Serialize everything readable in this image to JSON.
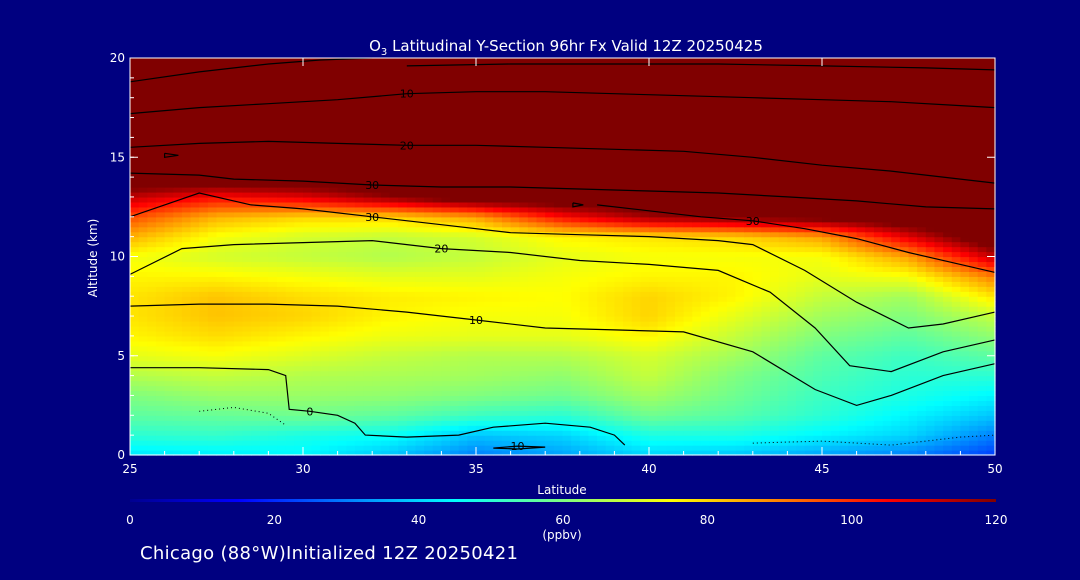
{
  "chart_data": {
    "type": "heatmap",
    "title_prefix": "O",
    "title_sub": "3",
    "title_rest": " Latitudinal Y-Section 96hr  Fx Valid 12Z 20250425",
    "xlabel": "Latitude",
    "ylabel": "Altitude (km)",
    "xlim": [
      25,
      50
    ],
    "ylim": [
      0,
      20
    ],
    "x_ticks": [
      "25",
      "30",
      "35",
      "40",
      "45",
      "50"
    ],
    "y_ticks": [
      "0",
      "5",
      "10",
      "15",
      "20"
    ],
    "colorbar": {
      "range": [
        0,
        120
      ],
      "ticks": [
        "0",
        "20",
        "40",
        "60",
        "80",
        "100",
        "120"
      ],
      "unit": "(ppbv)",
      "colormap": "jet"
    },
    "lat": [
      25,
      27.5,
      30,
      32.5,
      35,
      37.5,
      40,
      42.5,
      45,
      47.5,
      50
    ],
    "alt": [
      0,
      1,
      2,
      3,
      4,
      5,
      6,
      7,
      8,
      9,
      10,
      11,
      12,
      13,
      14,
      15,
      16,
      17,
      18,
      19,
      20
    ],
    "values": [
      [
        42,
        43,
        44,
        38,
        30,
        34,
        40,
        38,
        34,
        30,
        22
      ],
      [
        50,
        51,
        48,
        46,
        38,
        40,
        48,
        48,
        44,
        40,
        30
      ],
      [
        56,
        57,
        58,
        56,
        52,
        50,
        58,
        55,
        50,
        44,
        38
      ],
      [
        60,
        63,
        63,
        62,
        60,
        58,
        64,
        58,
        52,
        48,
        44
      ],
      [
        66,
        68,
        66,
        65,
        64,
        62,
        68,
        60,
        54,
        50,
        50
      ],
      [
        72,
        74,
        71,
        68,
        66,
        66,
        70,
        64,
        56,
        52,
        56
      ],
      [
        76,
        79,
        76,
        73,
        72,
        72,
        76,
        68,
        60,
        56,
        62
      ],
      [
        78,
        82,
        80,
        76,
        74,
        74,
        80,
        72,
        64,
        60,
        68
      ],
      [
        78,
        82,
        79,
        77,
        76,
        75,
        80,
        76,
        68,
        64,
        78
      ],
      [
        76,
        76,
        74,
        72,
        72,
        74,
        76,
        76,
        72,
        74,
        90
      ],
      [
        74,
        70,
        68,
        66,
        68,
        72,
        74,
        74,
        74,
        86,
        112
      ],
      [
        84,
        74,
        70,
        68,
        70,
        76,
        78,
        80,
        86,
        108,
        130
      ],
      [
        96,
        84,
        80,
        80,
        86,
        104,
        116,
        120,
        124,
        130,
        130
      ],
      [
        112,
        104,
        108,
        118,
        128,
        130,
        130,
        130,
        130,
        130,
        130
      ],
      [
        130,
        130,
        130,
        130,
        130,
        130,
        130,
        130,
        130,
        130,
        130
      ],
      [
        130,
        130,
        130,
        130,
        130,
        130,
        130,
        130,
        130,
        130,
        130
      ],
      [
        130,
        130,
        130,
        130,
        130,
        130,
        130,
        130,
        130,
        130,
        130
      ],
      [
        130,
        130,
        130,
        130,
        130,
        130,
        130,
        130,
        130,
        130,
        130
      ],
      [
        130,
        130,
        130,
        130,
        130,
        130,
        130,
        130,
        130,
        130,
        130
      ],
      [
        130,
        130,
        130,
        130,
        130,
        130,
        130,
        130,
        130,
        130,
        130
      ],
      [
        130,
        130,
        130,
        130,
        130,
        130,
        130,
        130,
        130,
        130,
        130
      ]
    ],
    "contours": [
      {
        "label": "0",
        "points": [
          [
            25,
            4.4
          ],
          [
            27,
            4.4
          ],
          [
            29,
            4.3
          ],
          [
            29.5,
            4.0
          ],
          [
            29.6,
            2.3
          ],
          [
            30.2,
            2.2
          ],
          [
            31,
            2.0
          ],
          [
            31.5,
            1.6
          ],
          [
            31.8,
            1.0
          ],
          [
            33,
            0.9
          ],
          [
            34.5,
            1.0
          ],
          [
            35.5,
            1.4
          ],
          [
            37,
            1.6
          ],
          [
            38.3,
            1.4
          ],
          [
            39,
            1.0
          ],
          [
            39.3,
            0.5
          ]
        ]
      },
      {
        "label": "10",
        "points": [
          [
            25,
            7.5
          ],
          [
            27,
            7.6
          ],
          [
            29,
            7.6
          ],
          [
            31,
            7.5
          ],
          [
            33,
            7.2
          ],
          [
            35,
            6.8
          ],
          [
            37,
            6.4
          ],
          [
            39,
            6.3
          ],
          [
            41,
            6.2
          ],
          [
            43,
            5.2
          ],
          [
            44.8,
            3.3
          ],
          [
            46,
            2.5
          ],
          [
            47,
            3.0
          ],
          [
            48.5,
            4.0
          ],
          [
            50,
            4.6
          ]
        ]
      },
      {
        "label": "20",
        "points": [
          [
            25,
            9.1
          ],
          [
            26.5,
            10.4
          ],
          [
            28,
            10.6
          ],
          [
            30,
            10.7
          ],
          [
            32,
            10.8
          ],
          [
            34,
            10.4
          ],
          [
            36,
            10.2
          ],
          [
            38,
            9.8
          ],
          [
            40,
            9.6
          ],
          [
            42,
            9.3
          ],
          [
            43.5,
            8.2
          ],
          [
            44.8,
            6.4
          ],
          [
            45.8,
            4.5
          ],
          [
            47,
            4.2
          ],
          [
            48.5,
            5.2
          ],
          [
            50,
            5.8
          ]
        ]
      },
      {
        "label": "30",
        "points": [
          [
            25,
            12.0
          ],
          [
            26,
            12.6
          ],
          [
            27,
            13.2
          ],
          [
            28.5,
            12.6
          ],
          [
            30,
            12.4
          ],
          [
            32,
            12.0
          ],
          [
            34,
            11.6
          ],
          [
            36,
            11.2
          ],
          [
            38,
            11.1
          ],
          [
            40,
            11.0
          ],
          [
            42,
            10.8
          ],
          [
            43,
            10.6
          ],
          [
            44.5,
            9.3
          ],
          [
            46,
            7.7
          ],
          [
            47.5,
            6.4
          ],
          [
            48.5,
            6.6
          ],
          [
            50,
            7.2
          ]
        ]
      },
      {
        "label": "30",
        "points": [
          [
            38.5,
            12.6
          ],
          [
            40,
            12.3
          ],
          [
            41.5,
            12.0
          ],
          [
            43,
            11.8
          ],
          [
            44.5,
            11.4
          ],
          [
            46,
            10.9
          ],
          [
            47.5,
            10.2
          ],
          [
            49,
            9.6
          ],
          [
            50,
            9.2
          ]
        ]
      },
      {
        "label": "30",
        "points": [
          [
            25,
            14.2
          ],
          [
            27,
            14.1
          ],
          [
            28,
            13.9
          ],
          [
            30,
            13.8
          ],
          [
            32,
            13.6
          ],
          [
            34,
            13.5
          ],
          [
            36,
            13.5
          ],
          [
            38,
            13.4
          ],
          [
            40,
            13.3
          ],
          [
            42,
            13.2
          ],
          [
            44,
            13.0
          ],
          [
            46,
            12.8
          ],
          [
            48,
            12.5
          ],
          [
            50,
            12.4
          ]
        ]
      },
      {
        "label": "20",
        "points": [
          [
            25,
            15.5
          ],
          [
            27,
            15.7
          ],
          [
            29,
            15.8
          ],
          [
            31,
            15.7
          ],
          [
            33,
            15.6
          ],
          [
            35,
            15.6
          ],
          [
            37,
            15.5
          ],
          [
            39,
            15.4
          ],
          [
            41,
            15.3
          ],
          [
            43,
            15.0
          ],
          [
            45,
            14.6
          ],
          [
            47,
            14.3
          ],
          [
            49,
            13.9
          ],
          [
            50,
            13.7
          ]
        ]
      },
      {
        "label": "10",
        "points": [
          [
            25,
            17.2
          ],
          [
            27,
            17.5
          ],
          [
            29,
            17.7
          ],
          [
            31,
            17.9
          ],
          [
            33,
            18.2
          ],
          [
            35,
            18.3
          ],
          [
            37,
            18.3
          ],
          [
            39,
            18.2
          ],
          [
            41,
            18.1
          ],
          [
            43,
            18.0
          ],
          [
            45,
            17.9
          ],
          [
            47,
            17.8
          ],
          [
            49,
            17.6
          ],
          [
            50,
            17.5
          ]
        ]
      },
      {
        "label": "",
        "points": [
          [
            25,
            18.8
          ],
          [
            27,
            19.3
          ],
          [
            29,
            19.7
          ],
          [
            30.5,
            19.9
          ],
          [
            32,
            20.0
          ]
        ]
      },
      {
        "label": "",
        "points": [
          [
            33,
            19.6
          ],
          [
            36,
            19.7
          ],
          [
            39,
            19.7
          ],
          [
            42,
            19.7
          ],
          [
            45,
            19.6
          ],
          [
            48,
            19.5
          ],
          [
            50,
            19.4
          ]
        ]
      },
      {
        "label": "10",
        "points": [
          [
            35.5,
            0.35
          ],
          [
            36.2,
            0.45
          ],
          [
            37,
            0.4
          ],
          [
            36.2,
            0.3
          ],
          [
            35.5,
            0.35
          ]
        ]
      },
      {
        "label": "",
        "points": [
          [
            26,
            15.2
          ],
          [
            26.4,
            15.1
          ],
          [
            26,
            15.0
          ],
          [
            26,
            15.2
          ]
        ]
      },
      {
        "label": "",
        "points": [
          [
            37.8,
            12.7
          ],
          [
            38.1,
            12.6
          ],
          [
            37.8,
            12.5
          ],
          [
            37.8,
            12.7
          ]
        ]
      }
    ],
    "dotted_contours": [
      [
        [
          27,
          2.2
        ],
        [
          28,
          2.4
        ],
        [
          29,
          2.1
        ],
        [
          29.5,
          1.5
        ]
      ],
      [
        [
          43,
          0.6
        ],
        [
          45,
          0.7
        ],
        [
          47,
          0.5
        ],
        [
          49,
          0.9
        ],
        [
          50,
          1.0
        ]
      ]
    ]
  },
  "footer": {
    "text": "Chicago (88°W)Initialized 12Z 20250421"
  }
}
